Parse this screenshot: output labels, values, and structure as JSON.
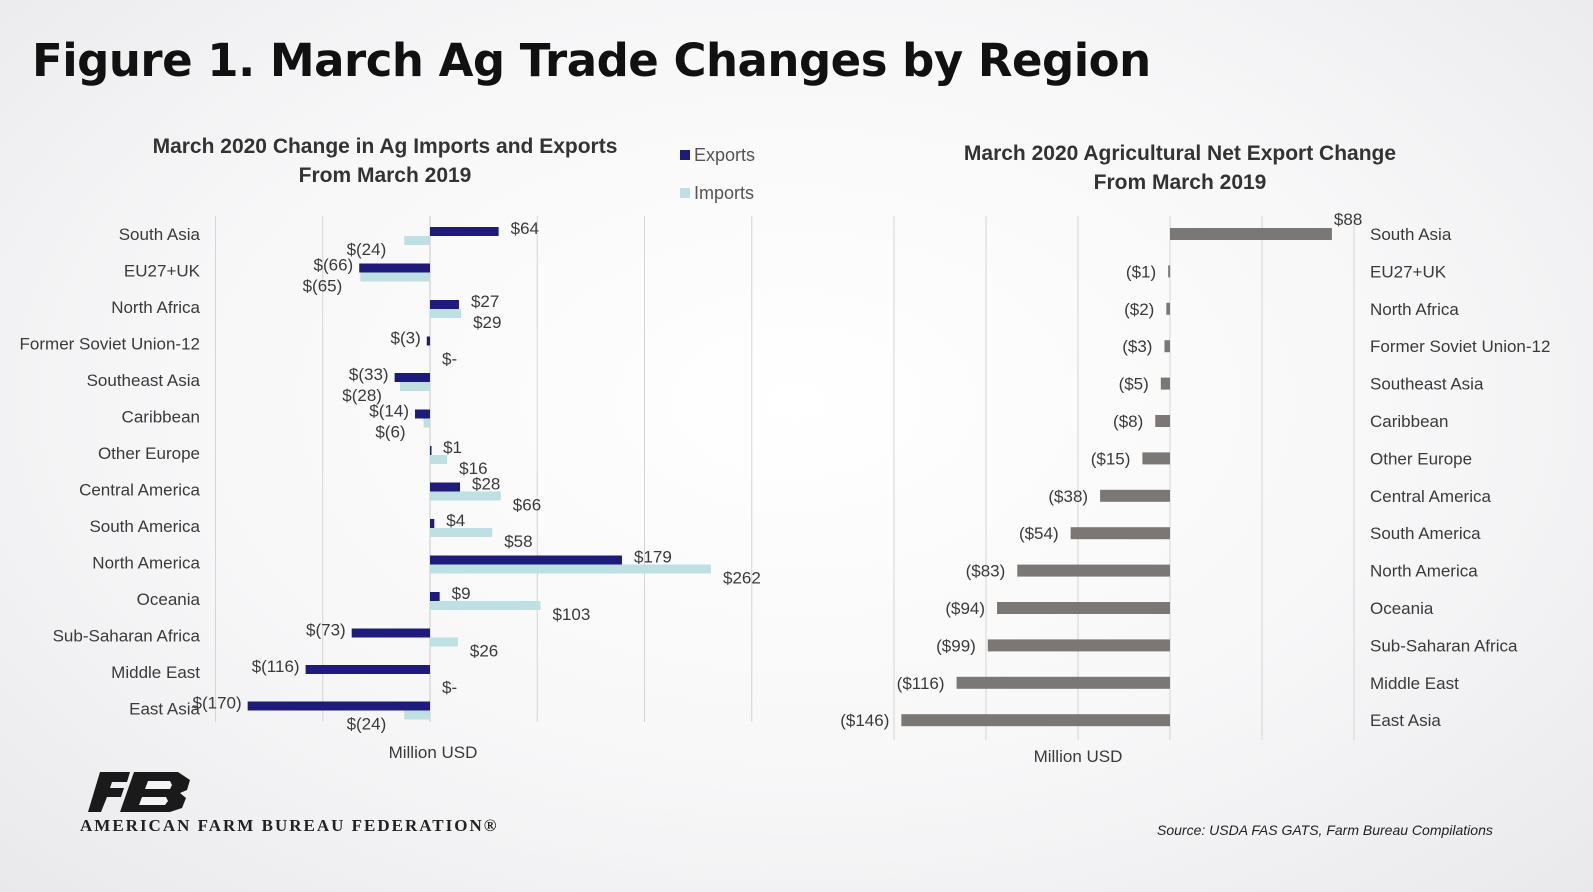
{
  "title": "Figure 1. March Ag Trade Changes by Region",
  "colors": {
    "exports": "#1f1b7a",
    "imports": "#bfe0e2",
    "net": "#7b7775",
    "grid": "#d4d4d4"
  },
  "chart_data": [
    {
      "type": "bar",
      "orientation": "horizontal",
      "title": "March 2020 Change in Ag Imports and Exports From March 2019",
      "title_lines": [
        "March 2020 Change in Ag Imports and Exports",
        "From March 2019"
      ],
      "xlabel": "Million USD",
      "xlim": [
        -200,
        300
      ],
      "grid": true,
      "legend": "top-right",
      "categories": [
        "South Asia",
        "EU27+UK",
        "North Africa",
        "Former Soviet Union-12",
        "Southeast Asia",
        "Caribbean",
        "Other Europe",
        "Central America",
        "South America",
        "North America",
        "Oceania",
        "Sub-Saharan Africa",
        "Middle East",
        "East Asia"
      ],
      "series": [
        {
          "name": "Exports",
          "values": [
            64,
            -66,
            27,
            -3,
            -33,
            -14,
            1,
            28,
            4,
            179,
            9,
            -73,
            -116,
            -170
          ],
          "labels": [
            "$64",
            "$(66)",
            "$27",
            "$(3)",
            "$(33)",
            "$(14)",
            "$1",
            "$28",
            "$4",
            "$179",
            "$9",
            "$(73)",
            "$(116)",
            "$(170)"
          ]
        },
        {
          "name": "Imports",
          "values": [
            -24,
            -65,
            29,
            0,
            -28,
            -6,
            16,
            66,
            58,
            262,
            103,
            26,
            0,
            -24
          ],
          "labels": [
            "$(24)",
            "$(65)",
            "$29",
            "$-",
            "$(28)",
            "$(6)",
            "$16",
            "$66",
            "$58",
            "$262",
            "$103",
            "$26",
            "$-",
            "$(24)"
          ]
        }
      ]
    },
    {
      "type": "bar",
      "orientation": "horizontal",
      "title": "March 2020 Agricultural Net Export Change From March 2019",
      "title_lines": [
        "March 2020 Agricultural Net Export Change",
        "From March 2019"
      ],
      "xlabel": "Million USD",
      "xlim": [
        -150,
        100
      ],
      "grid": true,
      "categories": [
        "South Asia",
        "EU27+UK",
        "North Africa",
        "Former Soviet Union-12",
        "Southeast Asia",
        "Caribbean",
        "Other Europe",
        "Central America",
        "South America",
        "North America",
        "Oceania",
        "Sub-Saharan Africa",
        "Middle East",
        "East Asia"
      ],
      "series": [
        {
          "name": "Net Export Change",
          "values": [
            88,
            -1,
            -2,
            -3,
            -5,
            -8,
            -15,
            -38,
            -54,
            -83,
            -94,
            -99,
            -116,
            -146
          ],
          "labels": [
            "$88",
            "($1)",
            "($2)",
            "($3)",
            "($5)",
            "($8)",
            "($15)",
            "($38)",
            "($54)",
            "($83)",
            "($94)",
            "($99)",
            "($116)",
            "($146)"
          ]
        }
      ]
    }
  ],
  "footer": {
    "org": "AMERICAN FARM BUREAU FEDERATION®",
    "source": "Source: USDA FAS GATS, Farm Bureau Compilations"
  }
}
